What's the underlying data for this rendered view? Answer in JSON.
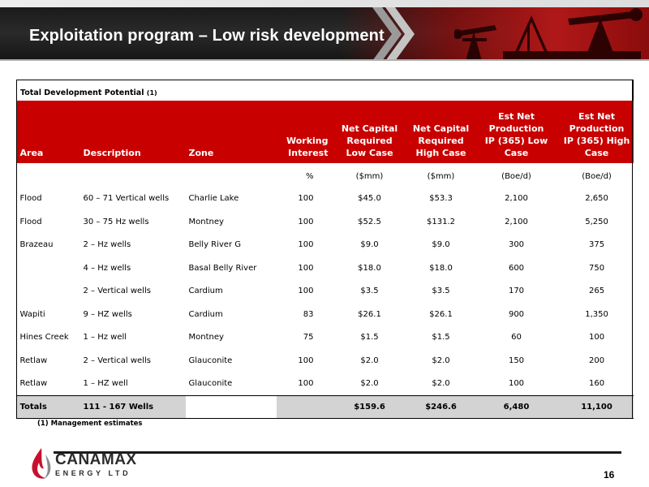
{
  "slide": {
    "title": "Exploitation program – Low risk development",
    "page_number": "16",
    "footnote": "(1) Management estimates"
  },
  "logo": {
    "name": "CANAMAX",
    "tagline": "ENERGY LTD"
  },
  "table": {
    "caption": "Total Development Potential",
    "caption_note": "(1)",
    "headers": {
      "area": "Area",
      "description": "Description",
      "zone": "Zone",
      "working_interest": [
        "Working",
        "Interest"
      ],
      "capital_low": [
        "Net Capital",
        "Required",
        "Low Case"
      ],
      "capital_high": [
        "Net Capital",
        "Required",
        "High Case"
      ],
      "prod_low": [
        "Est Net Production",
        "IP (365) Low Case"
      ],
      "prod_high": [
        "Est Net",
        "Production",
        "IP (365) High",
        "Case"
      ]
    },
    "units": {
      "working_interest": "%",
      "capital_low": "($mm)",
      "capital_high": "($mm)",
      "prod_low": "(Boe/d)",
      "prod_high": "(Boe/d)"
    },
    "rows": [
      {
        "area": "Flood",
        "description": "60 – 71 Vertical wells",
        "zone": "Charlie Lake",
        "wi": "100",
        "cap_low": "$45.0",
        "cap_high": "$53.3",
        "prod_low": "2,100",
        "prod_high": "2,650"
      },
      {
        "area": "Flood",
        "description": "30 – 75 Hz wells",
        "zone": "Montney",
        "wi": "100",
        "cap_low": "$52.5",
        "cap_high": "$131.2",
        "prod_low": "2,100",
        "prod_high": "5,250"
      },
      {
        "area": "Brazeau",
        "description": "2 – Hz wells",
        "zone": "Belly River G",
        "wi": "100",
        "cap_low": "$9.0",
        "cap_high": "$9.0",
        "prod_low": "300",
        "prod_high": "375"
      },
      {
        "area": "",
        "description": "4 – Hz wells",
        "zone": "Basal Belly River",
        "wi": "100",
        "cap_low": "$18.0",
        "cap_high": "$18.0",
        "prod_low": "600",
        "prod_high": "750"
      },
      {
        "area": "",
        "description": "2 – Vertical wells",
        "zone": "Cardium",
        "wi": "100",
        "cap_low": "$3.5",
        "cap_high": "$3.5",
        "prod_low": "170",
        "prod_high": "265"
      },
      {
        "area": "Wapiti",
        "description": "9 – HZ wells",
        "zone": "Cardium",
        "wi": "83",
        "cap_low": "$26.1",
        "cap_high": "$26.1",
        "prod_low": "900",
        "prod_high": "1,350"
      },
      {
        "area": "Hines Creek",
        "description": "1 – Hz well",
        "zone": "Montney",
        "wi": "75",
        "cap_low": "$1.5",
        "cap_high": "$1.5",
        "prod_low": "60",
        "prod_high": "100"
      },
      {
        "area": "Retlaw",
        "description": "2 – Vertical wells",
        "zone": "Glauconite",
        "wi": "100",
        "cap_low": "$2.0",
        "cap_high": "$2.0",
        "prod_low": "150",
        "prod_high": "200"
      },
      {
        "area": "Retlaw",
        "description": "1 – HZ well",
        "zone": "Glauconite",
        "wi": "100",
        "cap_low": "$2.0",
        "cap_high": "$2.0",
        "prod_low": "100",
        "prod_high": "160"
      }
    ],
    "totals": {
      "label": "Totals",
      "description": "111 - 167 Wells",
      "cap_low": "$159.6",
      "cap_high": "$246.6",
      "prod_low": "6,480",
      "prod_high": "11,100"
    }
  },
  "colors": {
    "header_red": "#c80000",
    "totals_gray": "#d3d3d3",
    "logo_red": "#c8102e"
  }
}
